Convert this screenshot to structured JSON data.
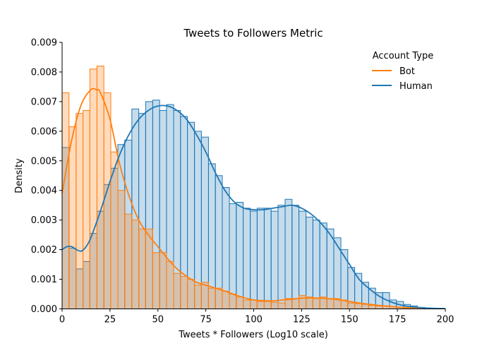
{
  "chart_data": {
    "type": "histogram+kde",
    "title": "Tweets to Followers Metric",
    "xlabel": "Tweets * Followers (Log10 scale)",
    "ylabel": "Density",
    "xlim": [
      0,
      200
    ],
    "ylim": [
      0,
      0.009
    ],
    "x_ticks": [
      "0",
      "25",
      "50",
      "75",
      "100",
      "125",
      "150",
      "175",
      "200"
    ],
    "y_ticks": [
      "0.000",
      "0.001",
      "0.002",
      "0.003",
      "0.004",
      "0.005",
      "0.006",
      "0.007",
      "0.008",
      "0.009"
    ],
    "grid": false,
    "legend": {
      "title": "Account Type",
      "placement": "top-right",
      "entries": [
        "Bot",
        "Human"
      ]
    },
    "bin_edges": [
      0,
      3.6,
      7.3,
      10.9,
      14.5,
      18.2,
      21.8,
      25.4,
      29.1,
      32.7,
      36.4,
      40,
      43.6,
      47.3,
      50.9,
      54.5,
      58.2,
      61.8,
      65.4,
      69.1,
      72.7,
      76.4,
      80,
      83.6,
      87.3,
      90.9,
      94.5,
      98.2,
      101.8,
      105.5,
      109.1,
      112.7,
      116.4,
      120,
      123.6,
      127.3,
      130.9,
      134.5,
      138.2,
      141.8,
      145.5,
      149.1,
      152.7,
      156.4,
      160,
      163.6,
      167.3,
      170.9,
      174.5,
      178.2,
      181.8,
      185.5,
      189.1,
      192.7,
      196.4,
      200
    ],
    "series": [
      {
        "name": "Bot",
        "color": "#ff7f0e",
        "fill": "#ffd9b8",
        "hist": [
          0.0073,
          0.00615,
          0.0066,
          0.0067,
          0.0081,
          0.0082,
          0.0073,
          0.0053,
          0.004,
          0.0032,
          0.003,
          0.0027,
          0.0027,
          0.0019,
          0.0019,
          0.0016,
          0.0012,
          0.0011,
          0.001,
          0.0008,
          0.0009,
          0.0007,
          0.0007,
          0.0006,
          0.0005,
          0.0004,
          0.0003,
          0.0003,
          0.00025,
          0.00025,
          0.00022,
          0.0002,
          0.00035,
          0.00035,
          0.00045,
          0.0004,
          0.00035,
          0.0004,
          0.00035,
          0.00035,
          0.0003,
          0.0002,
          0.00018,
          0.00015,
          0.00012,
          0.0001,
          0.0001,
          8e-05,
          5e-05,
          3e-05,
          2e-05,
          1e-05,
          0,
          0,
          0
        ],
        "kde_x": [
          0,
          5,
          10,
          15,
          18,
          20,
          25,
          30,
          35,
          40,
          45,
          50,
          55,
          60,
          65,
          70,
          75,
          80,
          85,
          90,
          95,
          100,
          105,
          110,
          115,
          120,
          125,
          130,
          135,
          140,
          145,
          150,
          155,
          160,
          165,
          170,
          175,
          180,
          185
        ],
        "kde_y": [
          0.0039,
          0.0057,
          0.0069,
          0.0074,
          0.0074,
          0.0073,
          0.0064,
          0.0049,
          0.0038,
          0.003,
          0.0025,
          0.0021,
          0.0017,
          0.00135,
          0.0011,
          0.0009,
          0.0008,
          0.0007,
          0.0006,
          0.00048,
          0.00038,
          0.0003,
          0.00028,
          0.00027,
          0.0003,
          0.00033,
          0.00036,
          0.00037,
          0.00036,
          0.00034,
          0.0003,
          0.00025,
          0.0002,
          0.00016,
          0.00012,
          9e-05,
          6e-05,
          4e-05,
          2e-05
        ]
      },
      {
        "name": "Human",
        "color": "#1f77b4",
        "fill": "#c4dbed",
        "hist": [
          0.00545,
          0.00205,
          0.00135,
          0.0016,
          0.00255,
          0.0033,
          0.0042,
          0.00475,
          0.00555,
          0.0057,
          0.00675,
          0.0066,
          0.007,
          0.00705,
          0.0067,
          0.0069,
          0.0067,
          0.0065,
          0.0063,
          0.006,
          0.0058,
          0.0049,
          0.0045,
          0.0041,
          0.00355,
          0.0036,
          0.0034,
          0.0033,
          0.0034,
          0.0034,
          0.0033,
          0.0035,
          0.0037,
          0.0035,
          0.0033,
          0.0031,
          0.003,
          0.0029,
          0.0027,
          0.0024,
          0.002,
          0.0014,
          0.0012,
          0.0009,
          0.0007,
          0.00055,
          0.00055,
          0.0003,
          0.00025,
          0.00015,
          0.0001,
          5e-05,
          3e-05,
          2e-05,
          1e-05
        ],
        "kde_x": [
          0,
          2.5,
          5,
          7.5,
          10,
          12.5,
          15,
          20,
          25,
          30,
          35,
          40,
          45,
          50,
          55,
          60,
          65,
          70,
          75,
          80,
          85,
          90,
          95,
          100,
          105,
          110,
          115,
          120,
          125,
          130,
          135,
          140,
          145,
          150,
          155,
          160,
          165,
          170,
          175,
          180,
          190,
          200
        ],
        "kde_y": [
          0.002,
          0.0021,
          0.0021,
          0.002,
          0.00195,
          0.0021,
          0.0024,
          0.0033,
          0.0043,
          0.0052,
          0.0059,
          0.0064,
          0.0067,
          0.00685,
          0.00685,
          0.0067,
          0.0064,
          0.0059,
          0.0053,
          0.0046,
          0.004,
          0.0036,
          0.0034,
          0.00335,
          0.00335,
          0.0034,
          0.00345,
          0.0035,
          0.0034,
          0.0032,
          0.0029,
          0.0025,
          0.002,
          0.0015,
          0.001,
          0.0007,
          0.00045,
          0.00028,
          0.00016,
          9e-05,
          3e-05,
          1e-05
        ]
      }
    ]
  }
}
